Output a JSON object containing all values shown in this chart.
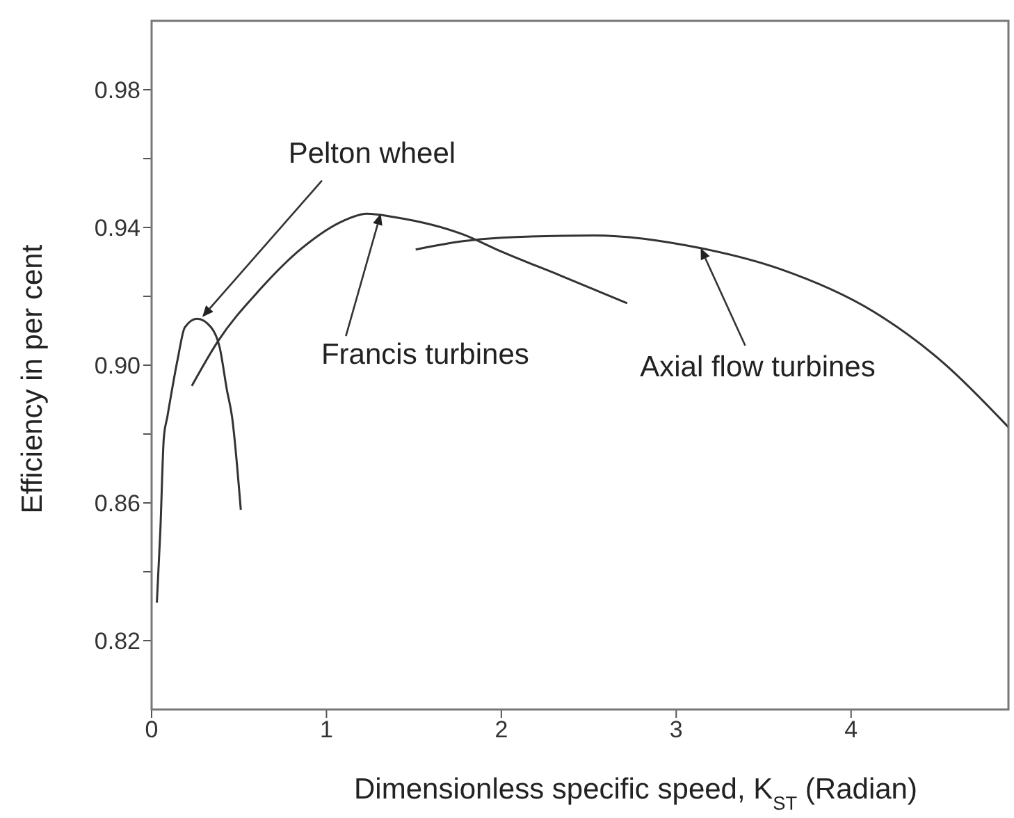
{
  "chart_data": {
    "type": "line",
    "xlabel": "Dimensionless specific speed, K$_{ST}$ (Radian)",
    "ylabel": "Efficiency in per cent",
    "xlim": [
      0,
      4.9
    ],
    "xticks": [
      0,
      1,
      2,
      3,
      4
    ],
    "ylim": [
      0.8,
      1.0
    ],
    "yticks": [
      {
        "value": 0.82,
        "label": "0.82"
      },
      {
        "value": 0.84,
        "label": null
      },
      {
        "value": 0.86,
        "label": "0.86"
      },
      {
        "value": 0.88,
        "label": null
      },
      {
        "value": 0.9,
        "label": "0.90"
      },
      {
        "value": 0.92,
        "label": null
      },
      {
        "value": 0.94,
        "label": "0.94"
      },
      {
        "value": 0.96,
        "label": null
      },
      {
        "value": 0.98,
        "label": "0.98"
      }
    ],
    "series": [
      {
        "color": "#333333",
        "x": [
          0.03,
          0.05,
          0.07,
          0.09,
          0.15,
          0.19,
          0.26,
          0.34,
          0.39,
          0.43,
          0.46,
          0.51
        ],
        "values": [
          0.831,
          0.852,
          0.879,
          0.885,
          0.902,
          0.911,
          0.9135,
          0.911,
          0.905,
          0.893,
          0.885,
          0.858
        ]
      },
      {
        "color": "#333333",
        "x": [
          0.23,
          0.38,
          0.62,
          0.86,
          1.1,
          1.23,
          1.39,
          1.78,
          2.0,
          2.34,
          2.72
        ],
        "values": [
          0.894,
          0.907,
          0.922,
          0.934,
          0.942,
          0.944,
          0.943,
          0.938,
          0.933,
          0.926,
          0.918
        ]
      },
      {
        "color": "#333333",
        "x": [
          1.51,
          1.78,
          2.0,
          2.53,
          3.14,
          3.59,
          4.13,
          4.53,
          4.9
        ],
        "values": [
          0.9336,
          0.936,
          0.937,
          0.9377,
          0.934,
          0.928,
          0.9155,
          0.9006,
          0.882
        ]
      }
    ],
    "annotations": [
      {
        "text": "Pelton wheel",
        "x": 0.29,
        "y": 0.914
      },
      {
        "text": "Francis turbines",
        "x": 1.31,
        "y": 0.944
      },
      {
        "text": "Axial flow turbines",
        "x": 3.14,
        "y": 0.934
      }
    ]
  }
}
